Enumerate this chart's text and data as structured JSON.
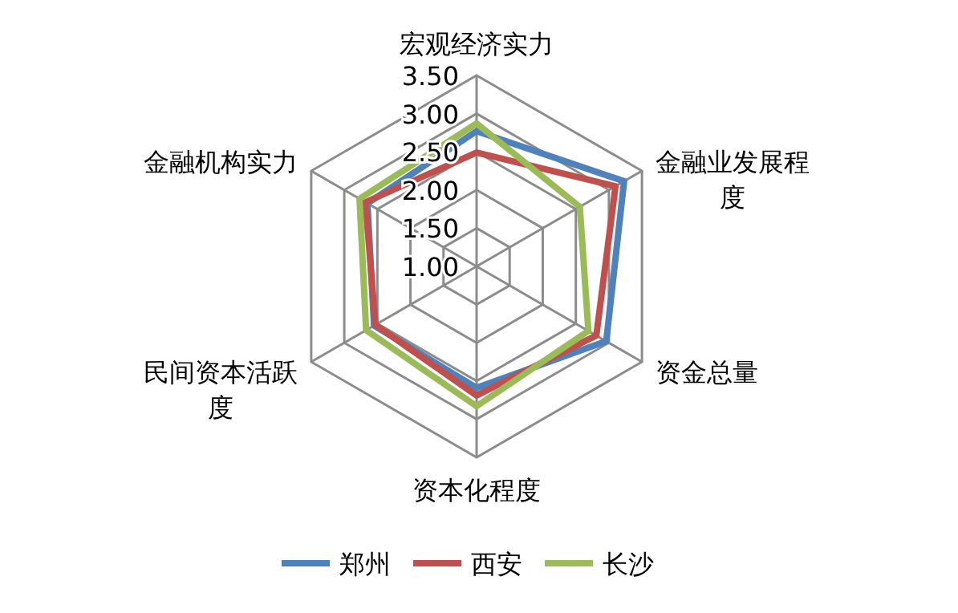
{
  "chart_data": {
    "type": "radar",
    "categories": [
      "宏观经济实力",
      "金融业发展程度",
      "资金总量",
      "资本化程度",
      "民间资本活跃度",
      "金融机构实力"
    ],
    "ylim": [
      1,
      3.5
    ],
    "yticks": [
      {
        "value": 1,
        "label": "1.00"
      },
      {
        "value": 1.5,
        "label": "1.50"
      },
      {
        "value": 2,
        "label": "2.00"
      },
      {
        "value": 2.5,
        "label": "2.50"
      },
      {
        "value": 3,
        "label": "3.00"
      },
      {
        "value": 3.5,
        "label": "3.50"
      }
    ],
    "grid": true,
    "legend": "bottom",
    "marker": "none",
    "series": [
      {
        "name": "郑州",
        "color": "#4f81bd",
        "values": [
          2.77,
          3.23,
          2.96,
          2.59,
          2.55,
          2.65
        ]
      },
      {
        "name": "西安",
        "color": "#c0504d",
        "values": [
          2.49,
          3.1,
          2.81,
          2.69,
          2.53,
          2.68
        ]
      },
      {
        "name": "长沙",
        "color": "#9bbb59",
        "values": [
          2.87,
          2.56,
          2.69,
          2.83,
          2.67,
          2.77
        ]
      }
    ]
  }
}
